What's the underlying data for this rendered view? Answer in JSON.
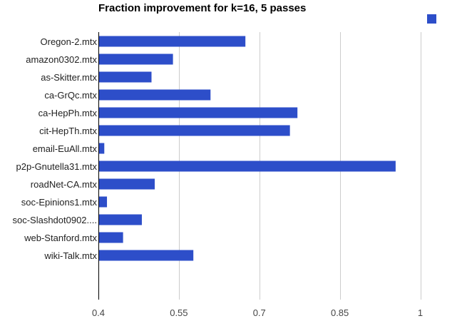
{
  "chart_data": {
    "type": "bar",
    "orientation": "horizontal",
    "title": "Fraction improvement for k=16, 5 passes",
    "xlabel": "",
    "ylabel": "",
    "xlim": [
      0.4,
      1.06
    ],
    "xticks": [
      0.4,
      0.55,
      0.7,
      0.85,
      1
    ],
    "xtick_labels": [
      "0.4",
      "0.55",
      "0.7",
      "0.85",
      "1"
    ],
    "grid": true,
    "legend_position": "top-right",
    "bar_color": "#2d4ec9",
    "categories": [
      "Oregon-2.mtx",
      "amazon0302.mtx",
      "as-Skitter.mtx",
      "ca-GrQc.mtx",
      "ca-HepPh.mtx",
      "cit-HepTh.mtx",
      "email-EuAll.mtx",
      "p2p-Gnutella31.mtx",
      "roadNet-CA.mtx",
      "soc-Epinions1.mtx",
      "soc-Slashdot0902....",
      "web-Stanford.mtx",
      "wiki-Talk.mtx"
    ],
    "series": [
      {
        "name": "",
        "values": [
          0.674,
          0.539,
          0.499,
          0.609,
          0.771,
          0.757,
          0.411,
          0.954,
          0.505,
          0.416,
          0.481,
          0.446,
          0.577
        ]
      }
    ]
  }
}
